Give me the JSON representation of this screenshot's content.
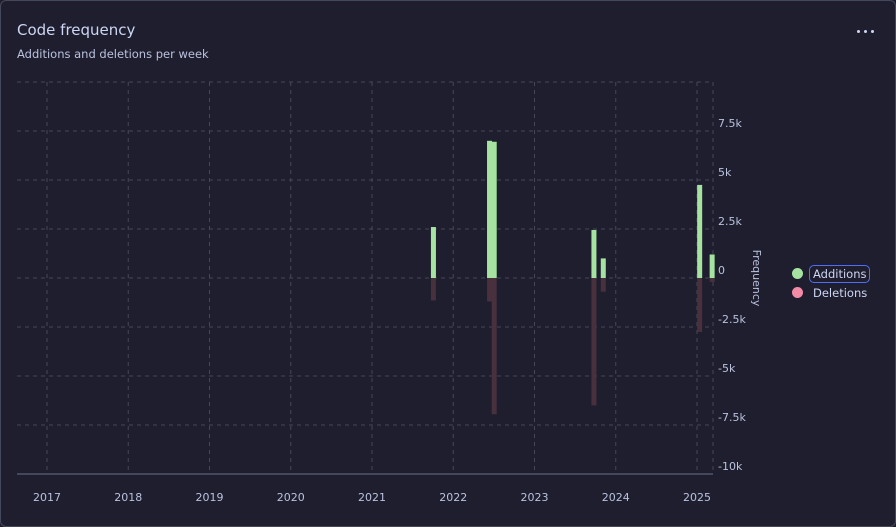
{
  "header": {
    "title": "Code frequency",
    "subtitle": "Additions and deletions per week",
    "menu_icon": "more-horizontal-icon"
  },
  "colors": {
    "additions": "#a6e3a1",
    "deletions": "#48303c",
    "deletions_legend": "#f38ba8",
    "grid": "#45475a",
    "axis": "#6c7086"
  },
  "chart_data": {
    "type": "bar",
    "title": "",
    "ylabel": "Frequency",
    "xlabel": "",
    "ylim": [
      -10000,
      10000
    ],
    "y_ticks": [
      {
        "value": 7500,
        "label": "7.5k"
      },
      {
        "value": 5000,
        "label": "5k"
      },
      {
        "value": 2500,
        "label": "2.5k"
      },
      {
        "value": 0,
        "label": "0"
      },
      {
        "value": -2500,
        "label": "-2.5k"
      },
      {
        "value": -5000,
        "label": "-5k"
      },
      {
        "value": -7500,
        "label": "-7.5k"
      },
      {
        "value": -10000,
        "label": "-10k"
      }
    ],
    "x_ticks": [
      "2017",
      "2018",
      "2019",
      "2020",
      "2021",
      "2022",
      "2023",
      "2024",
      "2025"
    ],
    "legend_position": "right",
    "grid": true,
    "series": [
      {
        "name": "Additions",
        "points": [
          {
            "date": "2021-10-04",
            "value": 2600
          },
          {
            "date": "2022-06-13",
            "value": 7000
          },
          {
            "date": "2022-07-04",
            "value": 6950
          },
          {
            "date": "2023-09-25",
            "value": 2450
          },
          {
            "date": "2023-11-06",
            "value": 1000
          },
          {
            "date": "2025-01-13",
            "value": 4750
          },
          {
            "date": "2025-03-10",
            "value": 1200
          }
        ]
      },
      {
        "name": "Deletions",
        "points": [
          {
            "date": "2021-10-04",
            "value": -1150
          },
          {
            "date": "2022-06-13",
            "value": -1200
          },
          {
            "date": "2022-07-04",
            "value": -6950
          },
          {
            "date": "2023-09-25",
            "value": -6500
          },
          {
            "date": "2023-11-06",
            "value": -700
          },
          {
            "date": "2025-01-13",
            "value": -2750
          },
          {
            "date": "2025-03-10",
            "value": -200
          }
        ]
      }
    ]
  }
}
